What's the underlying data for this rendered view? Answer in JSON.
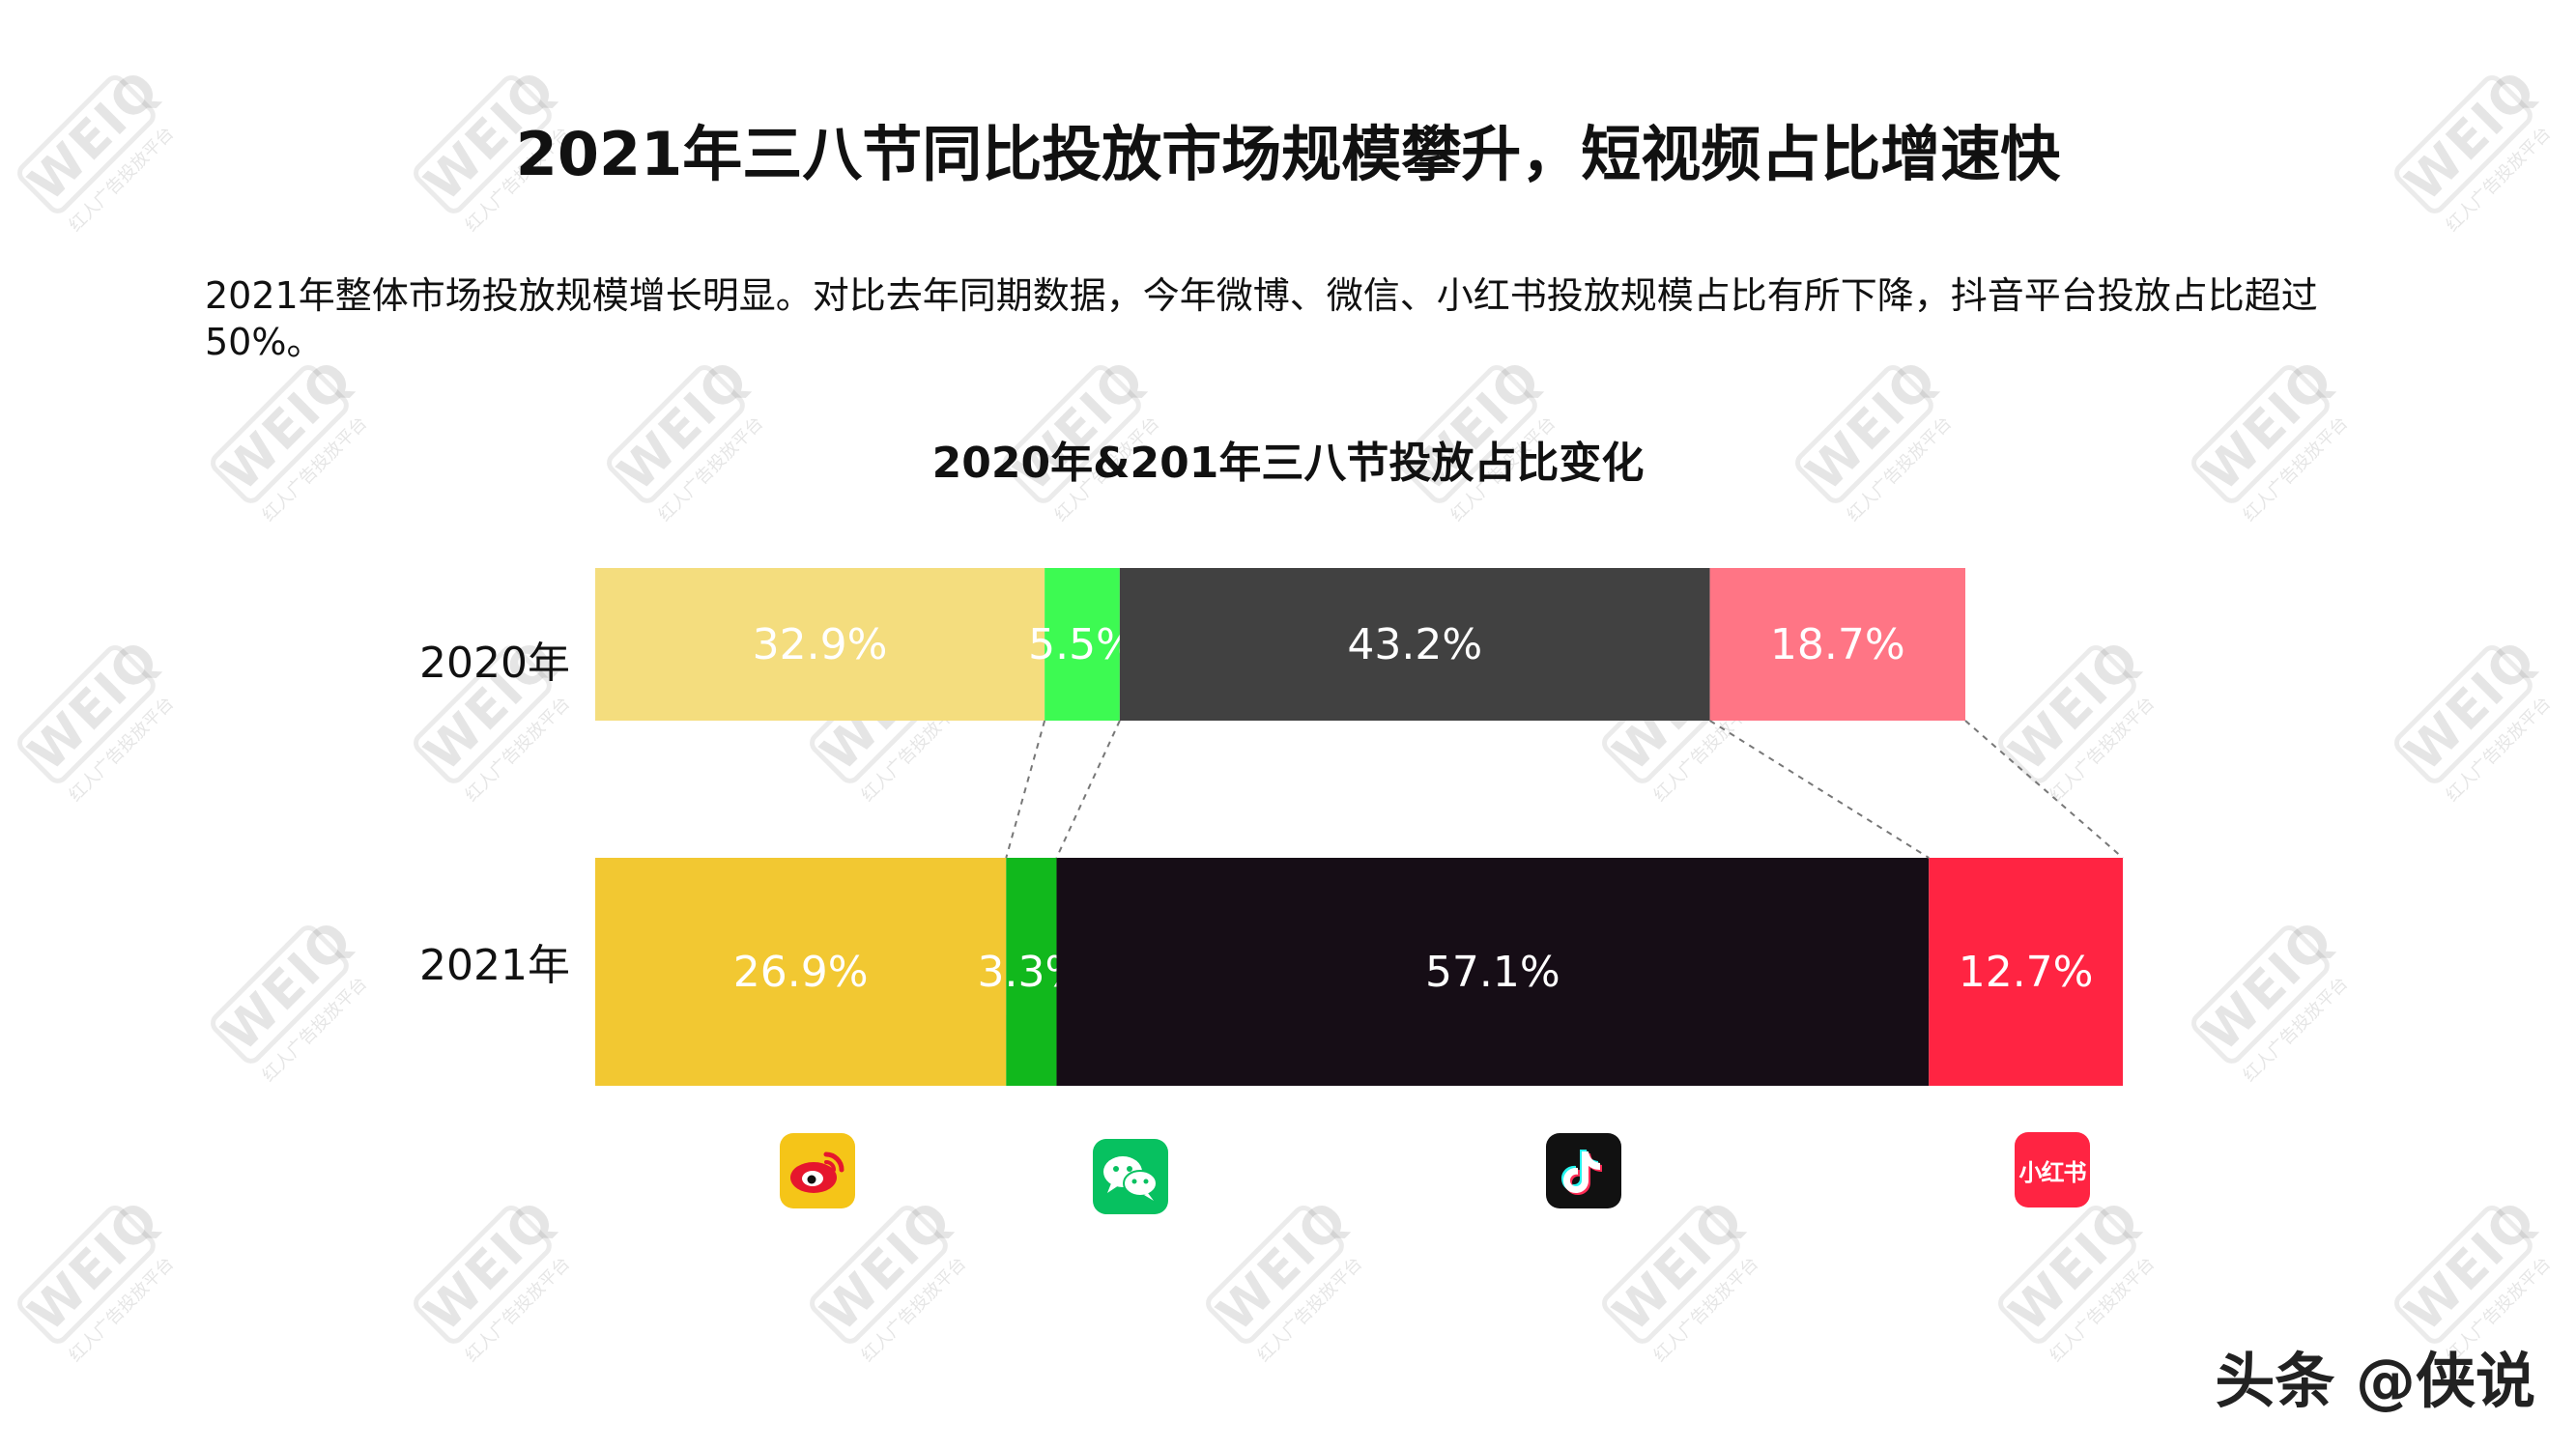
{
  "header": {
    "title": "2021年三八节同比投放市场规模攀升，短视频占比增速快",
    "description": "2021年整体市场投放规模增长明显。对比去年同期数据，今年微博、微信、小红书投放规模占比有所下降，抖音平台投放占比超过50%。"
  },
  "chart_data": {
    "type": "bar",
    "orientation": "horizontal",
    "stacked": "100%",
    "title": "2020年&201年三八节投放占比变化",
    "categories": [
      "2020年",
      "2021年"
    ],
    "series": [
      {
        "values": [
          32.9,
          26.9
        ],
        "colors": [
          "#F4DD7E",
          "#F2C832"
        ],
        "icon": "weibo-icon"
      },
      {
        "values": [
          5.5,
          3.3
        ],
        "colors": [
          "#3DFA52",
          "#11B81C"
        ],
        "icon": "wechat-icon"
      },
      {
        "values": [
          43.2,
          57.1
        ],
        "colors": [
          "#414141",
          "#160D16"
        ],
        "icon": "tiktok-icon"
      },
      {
        "values": [
          18.7,
          12.7
        ],
        "colors": [
          "#FF7585",
          "#FF2442"
        ],
        "icon": "xiaohongshu-icon"
      }
    ],
    "value_labels": [
      [
        "32.9%",
        "5.5%",
        "43.2%",
        "18.7%"
      ],
      [
        "26.9%",
        "3.3%",
        "57.1%",
        "12.7%"
      ]
    ],
    "connectors": "dashed",
    "legend": "icons below bars",
    "grid": false
  },
  "icons": {
    "xiaohongshu_text": "小红书"
  },
  "watermark": {
    "logo": "WEIQ",
    "subtitle": "红人广告投放平台"
  },
  "footer": {
    "credit": "头条 @侠说"
  }
}
